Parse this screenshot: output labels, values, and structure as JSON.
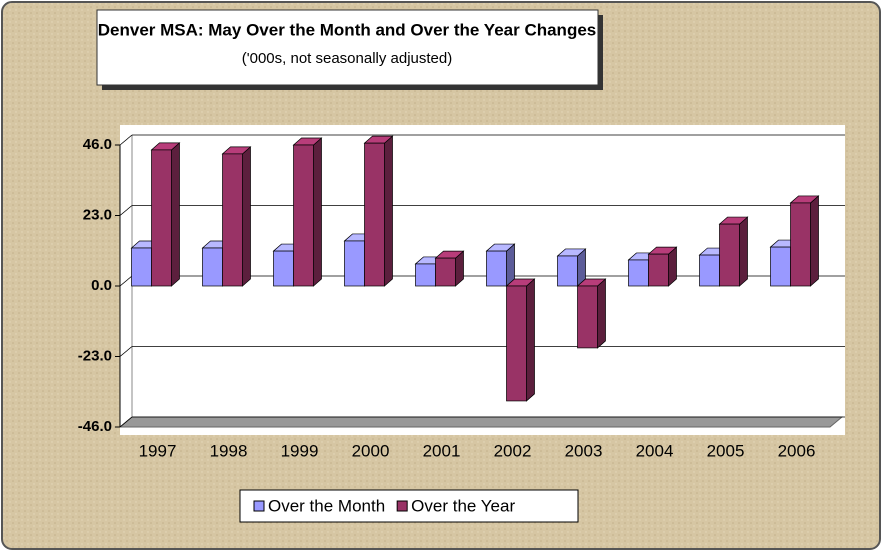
{
  "chart_data": {
    "type": "bar3d",
    "title": "Denver MSA: May Over the Month and Over the Year Changes",
    "subtitle": "('000s, not seasonally adjusted)",
    "categories": [
      "1997",
      "1998",
      "1999",
      "2000",
      "2001",
      "2002",
      "2003",
      "2004",
      "2005",
      "2006"
    ],
    "series": [
      {
        "name": "Over the Month",
        "color": "#9999ff",
        "values": [
          12.4,
          12.4,
          11.4,
          14.7,
          7.2,
          11.4,
          9.8,
          8.5,
          10.1,
          12.7
        ]
      },
      {
        "name": "Over the Year",
        "color": "#993366",
        "values": [
          44.4,
          43.1,
          46.0,
          46.6,
          9.1,
          -37.5,
          -20.2,
          10.4,
          20.2,
          27.1
        ]
      }
    ],
    "ylim": [
      -46,
      46
    ],
    "yticks": [
      {
        "value": 46,
        "label": "46.0"
      },
      {
        "value": 23,
        "label": "23.0"
      },
      {
        "value": 0,
        "label": "0.0"
      },
      {
        "value": -23,
        "label": "-23.0"
      },
      {
        "value": -46,
        "label": "-46.0"
      }
    ],
    "grid": true,
    "legend": "bottom"
  }
}
